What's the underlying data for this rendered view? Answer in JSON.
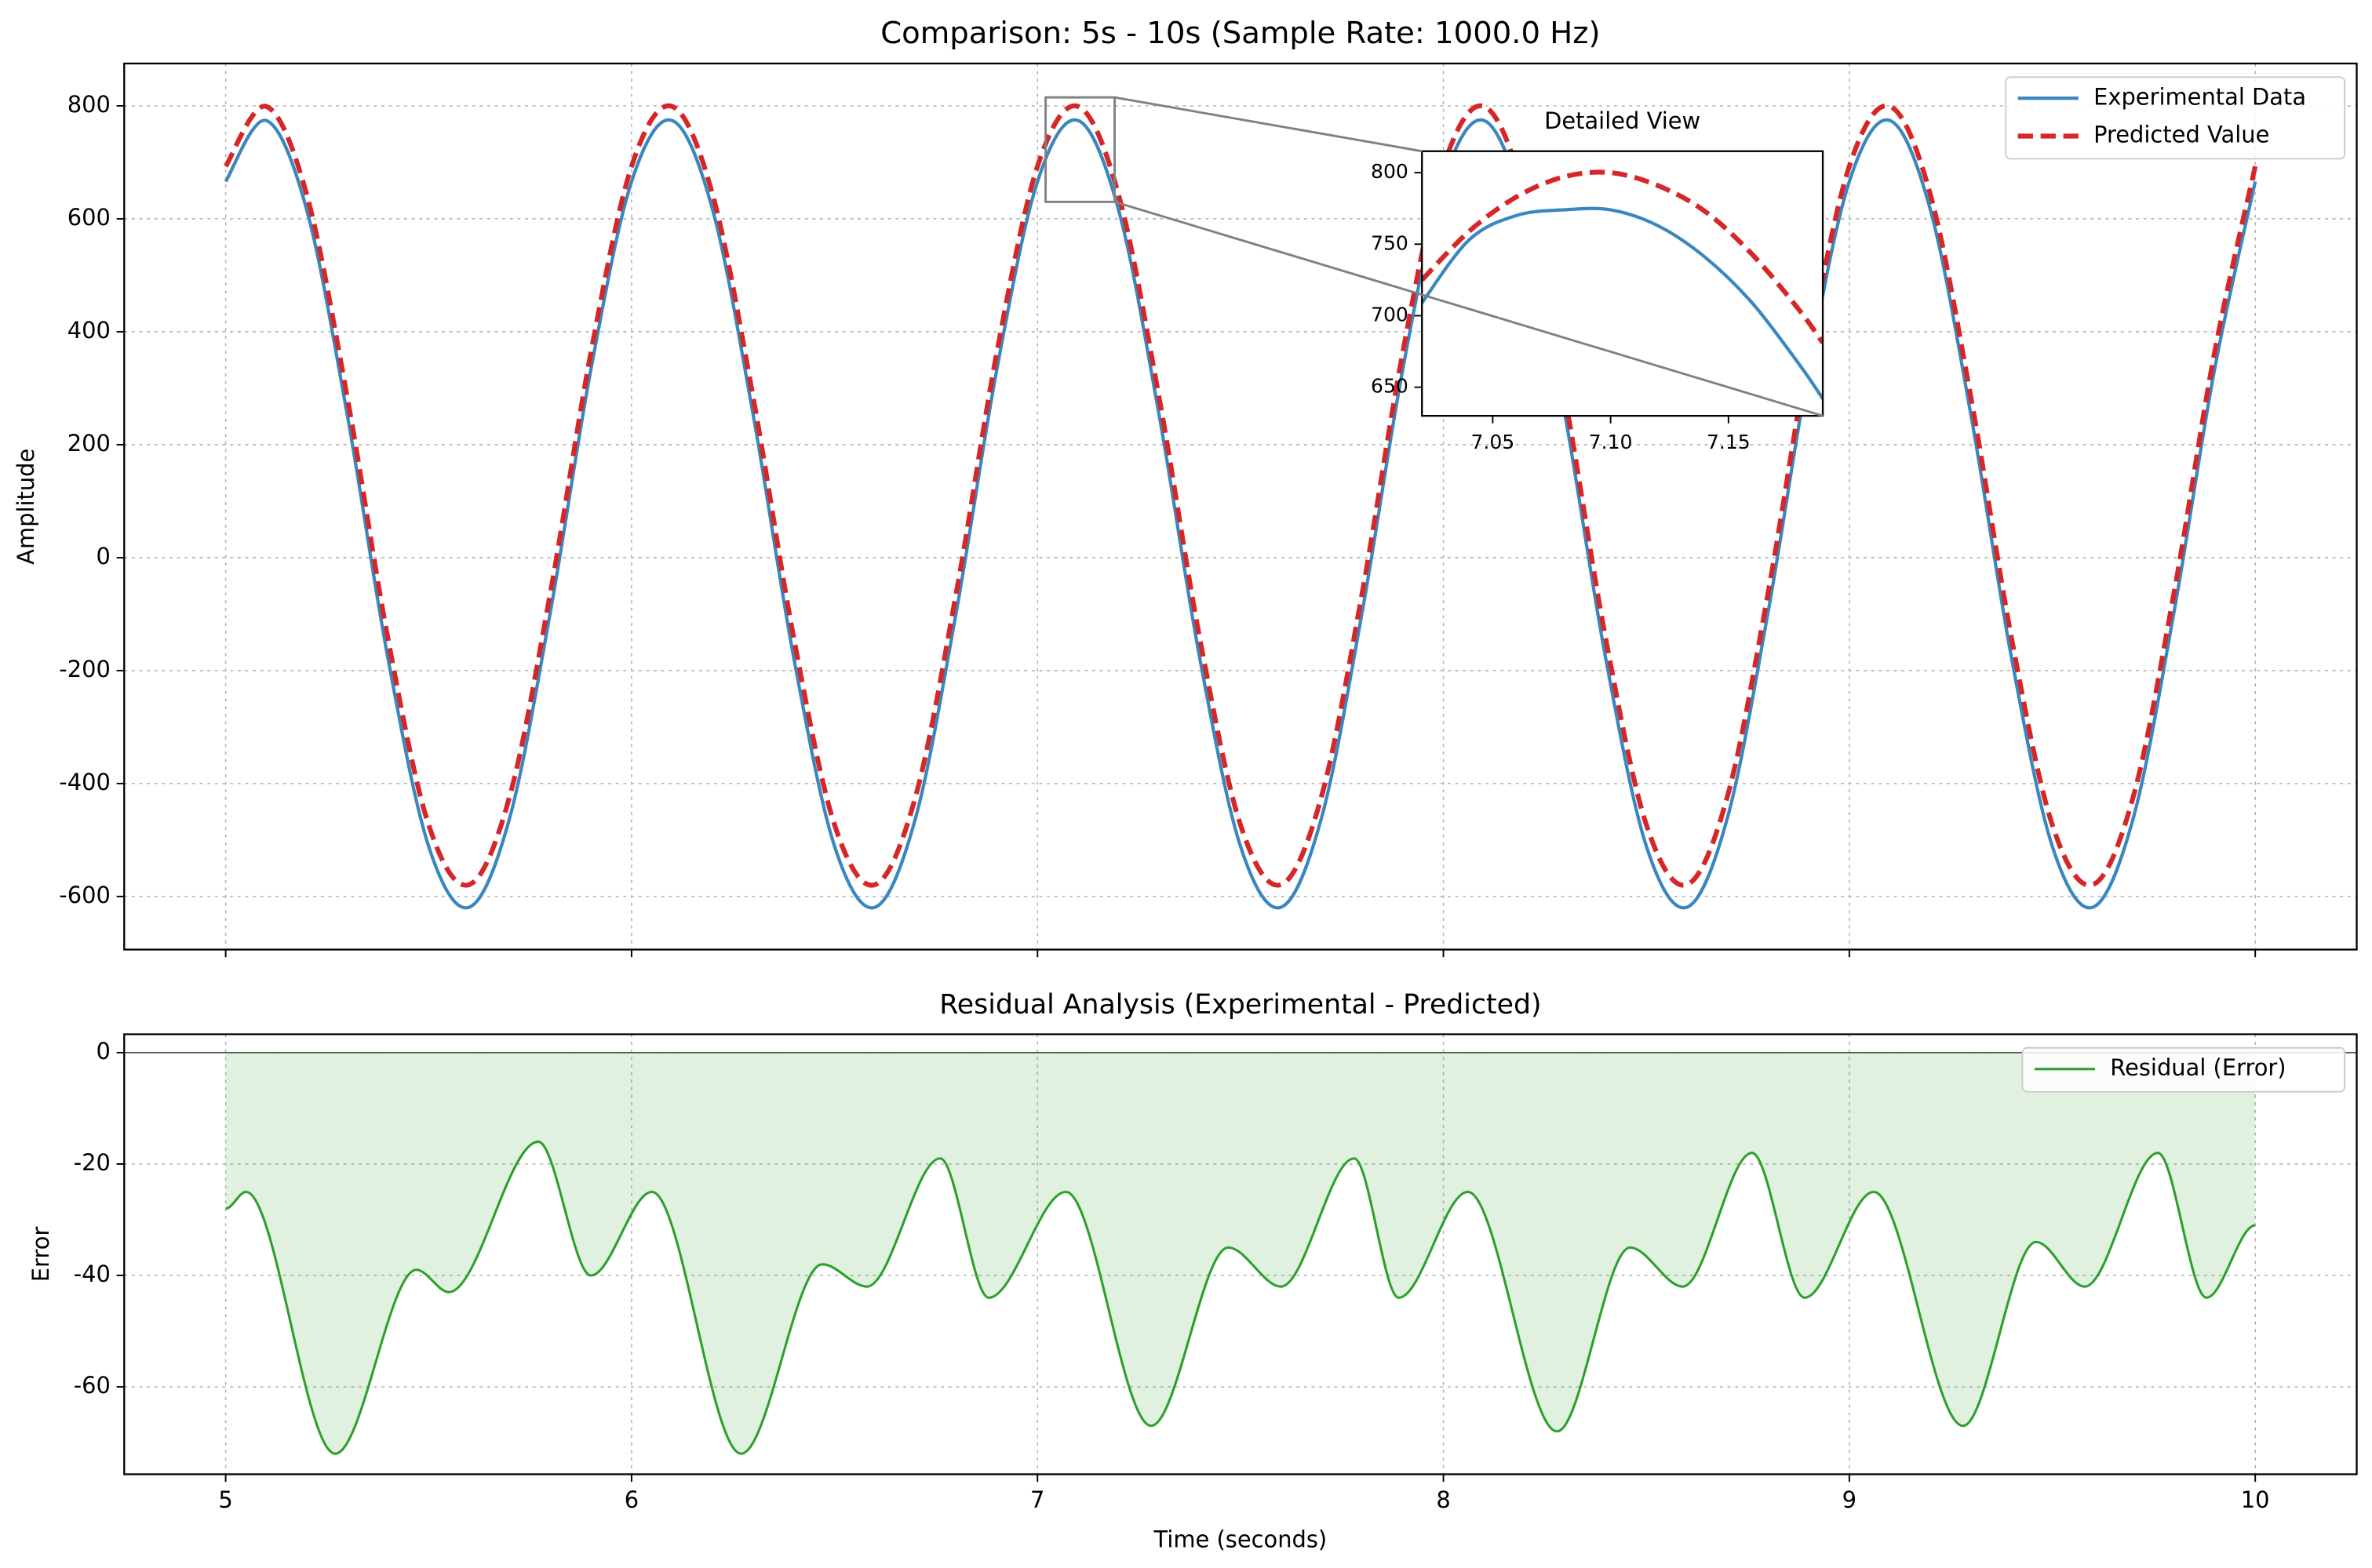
{
  "chart_data": [
    {
      "type": "line",
      "title": "Comparison: 5s - 10s (Sample Rate: 1000.0 Hz)",
      "ylabel": "Amplitude",
      "x": [
        5.0,
        5.1,
        5.2,
        5.3,
        5.4,
        5.5,
        5.6,
        5.7,
        5.8,
        5.9,
        6.0,
        6.1,
        6.2,
        6.3,
        6.4,
        6.5,
        6.6,
        6.7,
        6.8,
        6.9,
        7.0,
        7.1,
        7.2,
        7.3,
        7.4,
        7.5,
        7.6,
        7.7,
        7.8,
        7.9,
        8.0,
        8.1,
        8.2,
        8.3,
        8.4,
        8.5,
        8.6,
        8.7,
        8.8,
        8.9,
        9.0,
        9.1,
        9.2,
        9.3,
        9.4,
        9.5,
        9.6,
        9.7,
        9.8,
        9.9,
        10.0
      ],
      "series": [
        {
          "name": "Experimental Data",
          "color": "#3a87c0",
          "style": "solid",
          "values": [
            666,
            774,
            615,
            251,
            -179,
            -511,
            -619,
            -460,
            -96,
            334,
            666,
            774,
            615,
            251,
            -179,
            -511,
            -619,
            -460,
            -96,
            334,
            666,
            774,
            615,
            251,
            -179,
            -511,
            -619,
            -460,
            -96,
            334,
            666,
            774,
            615,
            251,
            -179,
            -511,
            -619,
            -460,
            -96,
            334,
            666,
            774,
            615,
            251,
            -179,
            -511,
            -619,
            -460,
            -96,
            334,
            666
          ]
        },
        {
          "name": "Predicted Value",
          "color": "#d62728",
          "style": "dashed",
          "values": [
            693,
            799,
            642,
            282,
            -144,
            -473,
            -579,
            -422,
            -62,
            364,
            693,
            799,
            642,
            282,
            -144,
            -473,
            -579,
            -422,
            -62,
            364,
            693,
            799,
            642,
            282,
            -144,
            -473,
            -579,
            -422,
            -62,
            364,
            693,
            799,
            642,
            282,
            -144,
            -473,
            -579,
            -422,
            -62,
            364,
            693,
            799,
            642,
            282,
            -144,
            -473,
            -579,
            -422,
            -62,
            364,
            693
          ]
        }
      ],
      "xlim": [
        4.75,
        10.25
      ],
      "ylim": [
        -694,
        875
      ],
      "yticks": [
        -600,
        -400,
        -200,
        0,
        200,
        400,
        600,
        800
      ],
      "sharex": 1,
      "grid": true,
      "legend": "upper right"
    },
    {
      "type": "area",
      "title": "Residual Analysis (Experimental - Predicted)",
      "xlabel": "Time (seconds)",
      "ylabel": "Error",
      "x": [
        5.0,
        5.05,
        5.27,
        5.47,
        5.55,
        5.77,
        5.9,
        6.05,
        6.27,
        6.47,
        6.58,
        6.76,
        6.88,
        7.07,
        7.28,
        7.47,
        7.6,
        7.78,
        7.89,
        8.06,
        8.28,
        8.46,
        8.59,
        8.76,
        8.89,
        9.06,
        9.28,
        9.46,
        9.58,
        9.76,
        9.88,
        10.0
      ],
      "series": [
        {
          "name": "Residual (Error)",
          "color": "#2ca02c",
          "fill": "#2ca02c",
          "values": [
            -28,
            -25,
            -72,
            -39,
            -43,
            -16,
            -40,
            -25,
            -72,
            -38,
            -42,
            -19,
            -44,
            -25,
            -67,
            -35,
            -42,
            -19,
            -44,
            -25,
            -68,
            -35,
            -42,
            -18,
            -44,
            -25,
            -67,
            -34,
            -42,
            -18,
            -44,
            -31
          ]
        }
      ],
      "xlim": [
        4.75,
        10.25
      ],
      "ylim": [
        -75.7,
        3.3
      ],
      "xticks": [
        5,
        6,
        7,
        8,
        9,
        10
      ],
      "yticks": [
        -60,
        -40,
        -20,
        0
      ],
      "grid": true,
      "legend": "upper right",
      "zero_line": true
    },
    {
      "type": "line",
      "title": "Detailed View",
      "x": [
        7.02,
        7.04,
        7.06,
        7.08,
        7.1,
        7.12,
        7.14,
        7.16,
        7.18,
        7.19
      ],
      "series": [
        {
          "color": "#3a87c0",
          "style": "solid",
          "values": [
            709,
            753,
            770,
            774,
            774,
            763,
            741,
            709,
            666,
            642
          ]
        },
        {
          "color": "#d62728",
          "style": "dashed",
          "values": [
            725,
            759,
            783,
            797,
            800,
            791,
            773,
            743,
            704,
            681
          ]
        }
      ],
      "xlim": [
        7.02,
        7.19
      ],
      "ylim": [
        630,
        815
      ],
      "xticks": [
        7.05,
        {
          "value": 7.1,
          "label": "7.10"
        },
        7.15
      ],
      "yticks": [
        650,
        700,
        750,
        800
      ],
      "grid": false,
      "inset_of": 0
    }
  ]
}
